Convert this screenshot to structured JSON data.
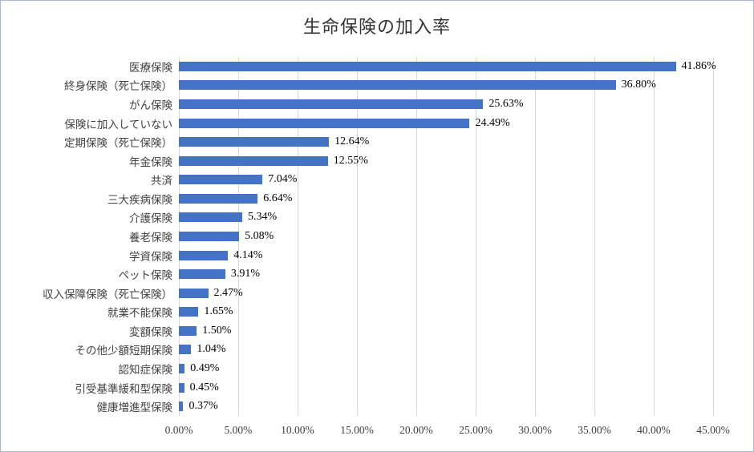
{
  "chart_data": {
    "type": "bar",
    "orientation": "horizontal",
    "title": "生命保険の加入率",
    "categories": [
      "医療保険",
      "終身保険（死亡保険）",
      "がん保険",
      "保険に加入していない",
      "定期保険（死亡保険）",
      "年金保険",
      "共済",
      "三大疾病保険",
      "介護保険",
      "養老保険",
      "学資保険",
      "ペット保険",
      "収入保障保険（死亡保険）",
      "就業不能保険",
      "変額保険",
      "その他少額短期保険",
      "認知症保険",
      "引受基準緩和型保険",
      "健康増進型保険"
    ],
    "values": [
      41.86,
      36.8,
      25.63,
      24.49,
      12.64,
      12.55,
      7.04,
      6.64,
      5.34,
      5.08,
      4.14,
      3.91,
      2.47,
      1.65,
      1.5,
      1.04,
      0.49,
      0.45,
      0.37
    ],
    "value_labels": [
      "41.86%",
      "36.80%",
      "25.63%",
      "24.49%",
      "12.64%",
      "12.55%",
      "7.04%",
      "6.64%",
      "5.34%",
      "5.08%",
      "4.14%",
      "3.91%",
      "2.47%",
      "1.65%",
      "1.50%",
      "1.04%",
      "0.49%",
      "0.45%",
      "0.37%"
    ],
    "x_axis": {
      "min": 0,
      "max": 45,
      "tick_step": 5,
      "tick_labels": [
        "0.00%",
        "5.00%",
        "10.00%",
        "15.00%",
        "20.00%",
        "25.00%",
        "30.00%",
        "35.00%",
        "40.00%",
        "45.00%"
      ]
    },
    "bar_color": "#4472C4",
    "gridline_color": "#d9d9d9",
    "grid": true,
    "legend": "none"
  }
}
